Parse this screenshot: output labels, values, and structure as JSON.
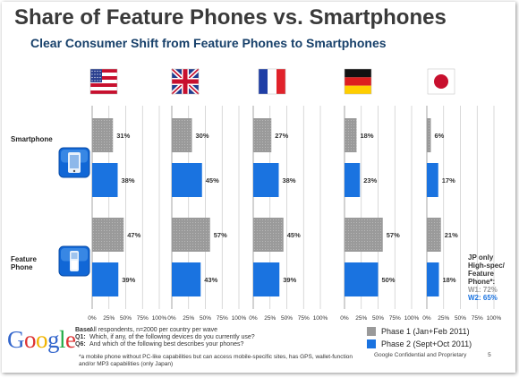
{
  "title": "Share of Feature Phones vs. Smartphones",
  "subtitle": "Clear Consumer Shift from Feature Phones to Smartphones",
  "countries": [
    "us-flag-icon",
    "uk-flag-icon",
    "france-flag-icon",
    "germany-flag-icon",
    "japan-flag-icon"
  ],
  "row_labels": [
    [
      "Smartphone"
    ],
    [
      "Feature",
      "Phone"
    ]
  ],
  "japan_note": {
    "lines": [
      "JP only",
      "High-spec/",
      "Feature",
      "Phone*:"
    ],
    "w1": "W1: 72%",
    "w2": "W2: 65%"
  },
  "footer": {
    "base_label": "Base:",
    "base_text": "All respondents, n=2000 per country per wave",
    "q1_label": "Q1:",
    "q1_text": "Which, if any, of the following devices do you currently use?",
    "q6_label": "Q6:",
    "q6_text": "And which of the following best describes your phones?",
    "note": "*a mobile phone without PC-like capabilities but can access mobile-specific sites, has GPS, wallet-function and/or MP3 capabilities (only Japan)"
  },
  "legend": {
    "phase1": "Phase 1 (Jan+Feb 2011)",
    "phase2": "Phase 2 (Sept+Oct 2011)"
  },
  "confidential": "Google Confidential and Proprietary",
  "page_number": "5",
  "logo_text": "Google",
  "colors": {
    "phase1": "#9a9a9a",
    "phase2": "#1a73e0",
    "subtitle": "#17406a",
    "grid": "#c8c8c8"
  },
  "chart_data": {
    "type": "bar",
    "orientation": "horizontal",
    "panels": [
      "United States",
      "United Kingdom",
      "France",
      "Germany",
      "Japan"
    ],
    "categories": [
      "Smartphone",
      "Feature Phone"
    ],
    "series": [
      {
        "name": "Phase 1 (Jan+Feb 2011)",
        "values": [
          [
            31,
            47
          ],
          [
            30,
            57
          ],
          [
            27,
            45
          ],
          [
            18,
            57
          ],
          [
            6,
            21
          ]
        ]
      },
      {
        "name": "Phase 2 (Sept+Oct 2011)",
        "values": [
          [
            38,
            39
          ],
          [
            45,
            43
          ],
          [
            38,
            39
          ],
          [
            23,
            50
          ],
          [
            17,
            18
          ]
        ]
      }
    ],
    "value_labels": [
      [
        [
          "31%",
          "47%"
        ],
        [
          "38%",
          "39%"
        ]
      ],
      [
        [
          "30%",
          "57%"
        ],
        [
          "45%",
          "43%"
        ]
      ],
      [
        [
          "27%",
          "45%"
        ],
        [
          "38%",
          "39%"
        ]
      ],
      [
        [
          "18%",
          "57%"
        ],
        [
          "23%",
          "50%"
        ]
      ],
      [
        [
          "6%",
          "21%"
        ],
        [
          "17%",
          "18%"
        ]
      ]
    ],
    "xticks": [
      "0%",
      "25%",
      "50%",
      "75%",
      "100%"
    ],
    "xlim": [
      0,
      100
    ]
  }
}
